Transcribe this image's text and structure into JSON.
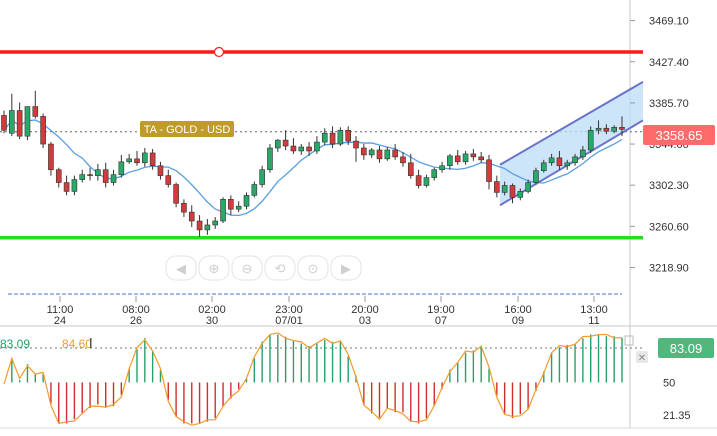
{
  "chart_data": [
    {
      "type": "candlestick",
      "title": "",
      "ylim": [
        3190,
        3490
      ],
      "y_ticks": [
        "3469.10",
        "3427.40",
        "3385.70",
        "3344.00",
        "3302.30",
        "3260.60",
        "3218.90"
      ],
      "x_ticks": [
        {
          "time": "11:00",
          "date": "24"
        },
        {
          "time": "08:00",
          "date": "26"
        },
        {
          "time": "02:00",
          "date": "30"
        },
        {
          "time": "23:00",
          "date": "07/01"
        },
        {
          "time": "20:00",
          "date": "03"
        },
        {
          "time": "19:00",
          "date": "07"
        },
        {
          "time": "16:00",
          "date": "09"
        },
        {
          "time": "13:00",
          "date": "11"
        }
      ],
      "current_price": "3358.65",
      "instrument_label": "TA - GOLD - USD",
      "resistance_level": 3437.3,
      "support_level": 3249.1,
      "dashed_level": 3356.5,
      "candles": [
        [
          3373,
          3378,
          3358,
          3355
        ],
        [
          3355,
          3395,
          3378,
          3352
        ],
        [
          3378,
          3386,
          3352,
          3349
        ],
        [
          3352,
          3365,
          3382,
          3348
        ],
        [
          3382,
          3398,
          3372,
          3370
        ],
        [
          3372,
          3375,
          3344,
          3340
        ],
        [
          3344,
          3346,
          3318,
          3312
        ],
        [
          3318,
          3320,
          3305,
          3300
        ],
        [
          3305,
          3312,
          3296,
          3292
        ],
        [
          3296,
          3312,
          3308,
          3292
        ],
        [
          3308,
          3318,
          3313,
          3305
        ],
        [
          3313,
          3320,
          3312,
          3307
        ],
        [
          3312,
          3324,
          3318,
          3307
        ],
        [
          3318,
          3325,
          3305,
          3300
        ],
        [
          3305,
          3318,
          3313,
          3302
        ],
        [
          3313,
          3333,
          3326,
          3310
        ],
        [
          3326,
          3334,
          3329,
          3324
        ],
        [
          3329,
          3337,
          3325,
          3322
        ],
        [
          3325,
          3340,
          3335,
          3321
        ],
        [
          3335,
          3339,
          3322,
          3318
        ],
        [
          3322,
          3326,
          3312,
          3308
        ],
        [
          3312,
          3318,
          3303,
          3300
        ],
        [
          3303,
          3305,
          3284,
          3280
        ],
        [
          3284,
          3288,
          3275,
          3270
        ],
        [
          3275,
          3282,
          3266,
          3260
        ],
        [
          3266,
          3272,
          3257,
          3250
        ],
        [
          3257,
          3268,
          3262,
          3252
        ],
        [
          3262,
          3270,
          3266,
          3258
        ],
        [
          3266,
          3290,
          3288,
          3264
        ],
        [
          3288,
          3292,
          3278,
          3272
        ],
        [
          3278,
          3286,
          3281,
          3275
        ],
        [
          3281,
          3295,
          3292,
          3278
        ],
        [
          3292,
          3306,
          3303,
          3290
        ],
        [
          3303,
          3322,
          3318,
          3300
        ],
        [
          3318,
          3344,
          3340,
          3315
        ],
        [
          3340,
          3349,
          3348,
          3336
        ],
        [
          3348,
          3358,
          3342,
          3338
        ],
        [
          3342,
          3350,
          3337,
          3334
        ],
        [
          3337,
          3344,
          3341,
          3333
        ],
        [
          3341,
          3346,
          3337,
          3332
        ],
        [
          3337,
          3352,
          3346,
          3334
        ],
        [
          3346,
          3360,
          3355,
          3343
        ],
        [
          3355,
          3362,
          3344,
          3340
        ],
        [
          3344,
          3361,
          3358,
          3342
        ],
        [
          3358,
          3362,
          3347,
          3343
        ],
        [
          3347,
          3352,
          3340,
          3326
        ],
        [
          3340,
          3344,
          3333,
          3328
        ],
        [
          3333,
          3340,
          3338,
          3330
        ],
        [
          3338,
          3342,
          3329,
          3325
        ],
        [
          3329,
          3341,
          3338,
          3327
        ],
        [
          3338,
          3344,
          3331,
          3328
        ],
        [
          3331,
          3336,
          3325,
          3321
        ],
        [
          3325,
          3334,
          3312,
          3309
        ],
        [
          3312,
          3318,
          3302,
          3299
        ],
        [
          3302,
          3313,
          3310,
          3300
        ],
        [
          3310,
          3320,
          3318,
          3307
        ],
        [
          3318,
          3326,
          3322,
          3315
        ],
        [
          3322,
          3334,
          3332,
          3318
        ],
        [
          3332,
          3338,
          3326,
          3323
        ],
        [
          3326,
          3337,
          3334,
          3323
        ],
        [
          3334,
          3339,
          3331,
          3327
        ],
        [
          3331,
          3336,
          3328,
          3325
        ],
        [
          3328,
          3333,
          3306,
          3298
        ],
        [
          3306,
          3312,
          3295,
          3290
        ],
        [
          3295,
          3306,
          3302,
          3292
        ],
        [
          3302,
          3304,
          3290,
          3284
        ],
        [
          3290,
          3299,
          3296,
          3287
        ],
        [
          3296,
          3308,
          3305,
          3294
        ],
        [
          3305,
          3320,
          3317,
          3303
        ],
        [
          3317,
          3328,
          3325,
          3315
        ],
        [
          3325,
          3334,
          3330,
          3322
        ],
        [
          3330,
          3337,
          3322,
          3318
        ],
        [
          3322,
          3328,
          3325,
          3318
        ],
        [
          3325,
          3334,
          3331,
          3322
        ],
        [
          3331,
          3342,
          3338,
          3328
        ],
        [
          3338,
          3362,
          3358,
          3335
        ],
        [
          3358,
          3368,
          3360,
          3354
        ],
        [
          3360,
          3364,
          3357,
          3354
        ],
        [
          3357,
          3363,
          3361,
          3355
        ],
        [
          3361,
          3372,
          3359,
          3352
        ]
      ],
      "channel": {
        "upper": [
          [
            3323,
            3407
          ]
        ],
        "lower": [
          [
            3282,
            3368
          ]
        ]
      }
    },
    {
      "type": "bar+line",
      "title": "",
      "ylim": [
        10,
        96
      ],
      "y_ticks": [
        "50",
        "21.35"
      ],
      "legend_values": [
        "83.09",
        "84.60"
      ],
      "current_value": "83.09",
      "colors": {
        "positive": "#26a269",
        "negative": "#d12e2e",
        "line": "#f39a2b"
      },
      "midline": 50
    }
  ],
  "toolbar": {
    "icons": [
      "arrow-left-icon",
      "zoom-in-icon",
      "zoom-out-icon",
      "zoom-reset-icon",
      "crosshair-icon",
      "arrow-right-icon"
    ]
  },
  "colors": {
    "resistance": "#ff1a1a",
    "support": "#1ee21e",
    "bull": "#2aa86a",
    "bear": "#d13b3b",
    "ma": "#5a9fe0",
    "channel": "#6a73c9",
    "price_badge": "#ff6b6b",
    "instrument_badge": "#c09a2b",
    "indicator_badge": "#4fb87d"
  }
}
